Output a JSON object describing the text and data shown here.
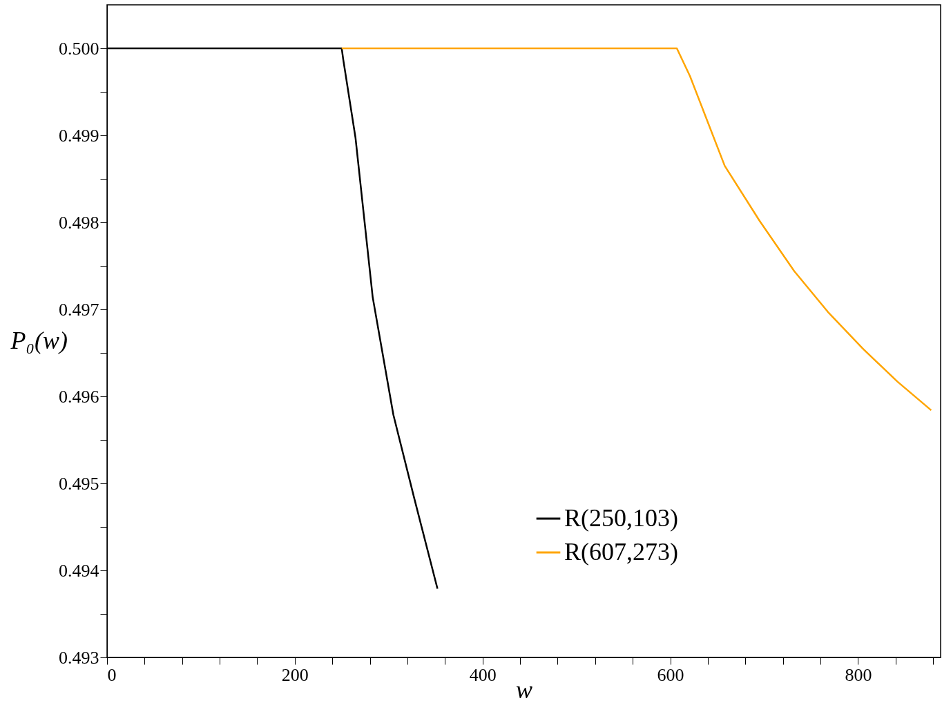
{
  "chart_data": {
    "type": "line",
    "xlabel": "w",
    "ylabel": "P₀(w)",
    "xlim": [
      0,
      888
    ],
    "ylim": [
      0.493,
      0.5005
    ],
    "xticks": [
      0,
      {
        "value": 40,
        "label": null
      },
      {
        "value": 80,
        "label": null
      },
      {
        "value": 120,
        "label": null
      },
      {
        "value": 160,
        "label": null
      },
      200,
      {
        "value": 240,
        "label": null
      },
      {
        "value": 280,
        "label": null
      },
      {
        "value": 320,
        "label": null
      },
      {
        "value": 360,
        "label": null
      },
      400,
      {
        "value": 440,
        "label": null
      },
      {
        "value": 480,
        "label": null
      },
      {
        "value": 520,
        "label": null
      },
      {
        "value": 560,
        "label": null
      },
      600,
      {
        "value": 640,
        "label": null
      },
      {
        "value": 680,
        "label": null
      },
      {
        "value": 720,
        "label": null
      },
      {
        "value": 760,
        "label": null
      },
      800,
      {
        "value": 840,
        "label": null
      },
      {
        "value": 880,
        "label": null
      }
    ],
    "yticks": [
      {
        "value": 0.493,
        "label": "0.493"
      },
      {
        "value": 0.4935,
        "label": null
      },
      {
        "value": 0.494,
        "label": "0.494"
      },
      {
        "value": 0.4945,
        "label": null
      },
      {
        "value": 0.495,
        "label": "0.495"
      },
      {
        "value": 0.4955,
        "label": null
      },
      {
        "value": 0.496,
        "label": "0.496"
      },
      {
        "value": 0.4965,
        "label": null
      },
      {
        "value": 0.497,
        "label": "0.497"
      },
      {
        "value": 0.4975,
        "label": null
      },
      {
        "value": 0.498,
        "label": "0.498"
      },
      {
        "value": 0.4985,
        "label": null
      },
      {
        "value": 0.499,
        "label": "0.499"
      },
      {
        "value": 0.4995,
        "label": null
      },
      {
        "value": 0.5,
        "label": "0.500"
      }
    ],
    "grid": false,
    "legend": "bottom right",
    "marker": "none",
    "line_style": "solid",
    "series": [
      {
        "name": "R(250,103)",
        "color": "#000000",
        "x": [
          0,
          250,
          251.5,
          264.7,
          283,
          305,
          327,
          352
        ],
        "values": [
          0.5,
          0.5,
          0.49988,
          0.49897,
          0.49714,
          0.49579,
          0.49484,
          0.49379
        ]
      },
      {
        "name": "R(607,273)",
        "color": "#ffa500",
        "x": [
          250,
          607,
          621,
          658,
          695,
          732,
          768,
          805,
          842,
          878
        ],
        "values": [
          0.5,
          0.5,
          0.49968,
          0.49865,
          0.49802,
          0.49744,
          0.49697,
          0.49655,
          0.49617,
          0.49584
        ]
      }
    ]
  }
}
